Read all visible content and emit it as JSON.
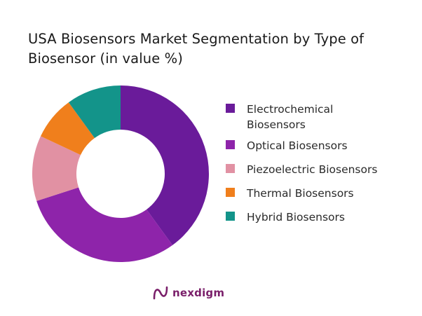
{
  "title": "USA Biosensors Market Segmentation by Type of Biosensor (in value %)",
  "chart_data": {
    "type": "pie",
    "title": "USA Biosensors Market Segmentation by Type of Biosensor (in value %)",
    "style": "donut",
    "categories": [
      "Electrochemical Biosensors",
      "Optical Biosensors",
      "Piezoelectric Biosensors",
      "Thermal Biosensors",
      "Hybrid Biosensors"
    ],
    "values": [
      40,
      30,
      12,
      8,
      10
    ],
    "colors": [
      "#6a1b9a",
      "#8e24aa",
      "#e191a3",
      "#f07f1c",
      "#13948a"
    ],
    "legend_position": "right"
  },
  "logo": {
    "text": "nexdigm",
    "color": "#7a1f6a"
  }
}
